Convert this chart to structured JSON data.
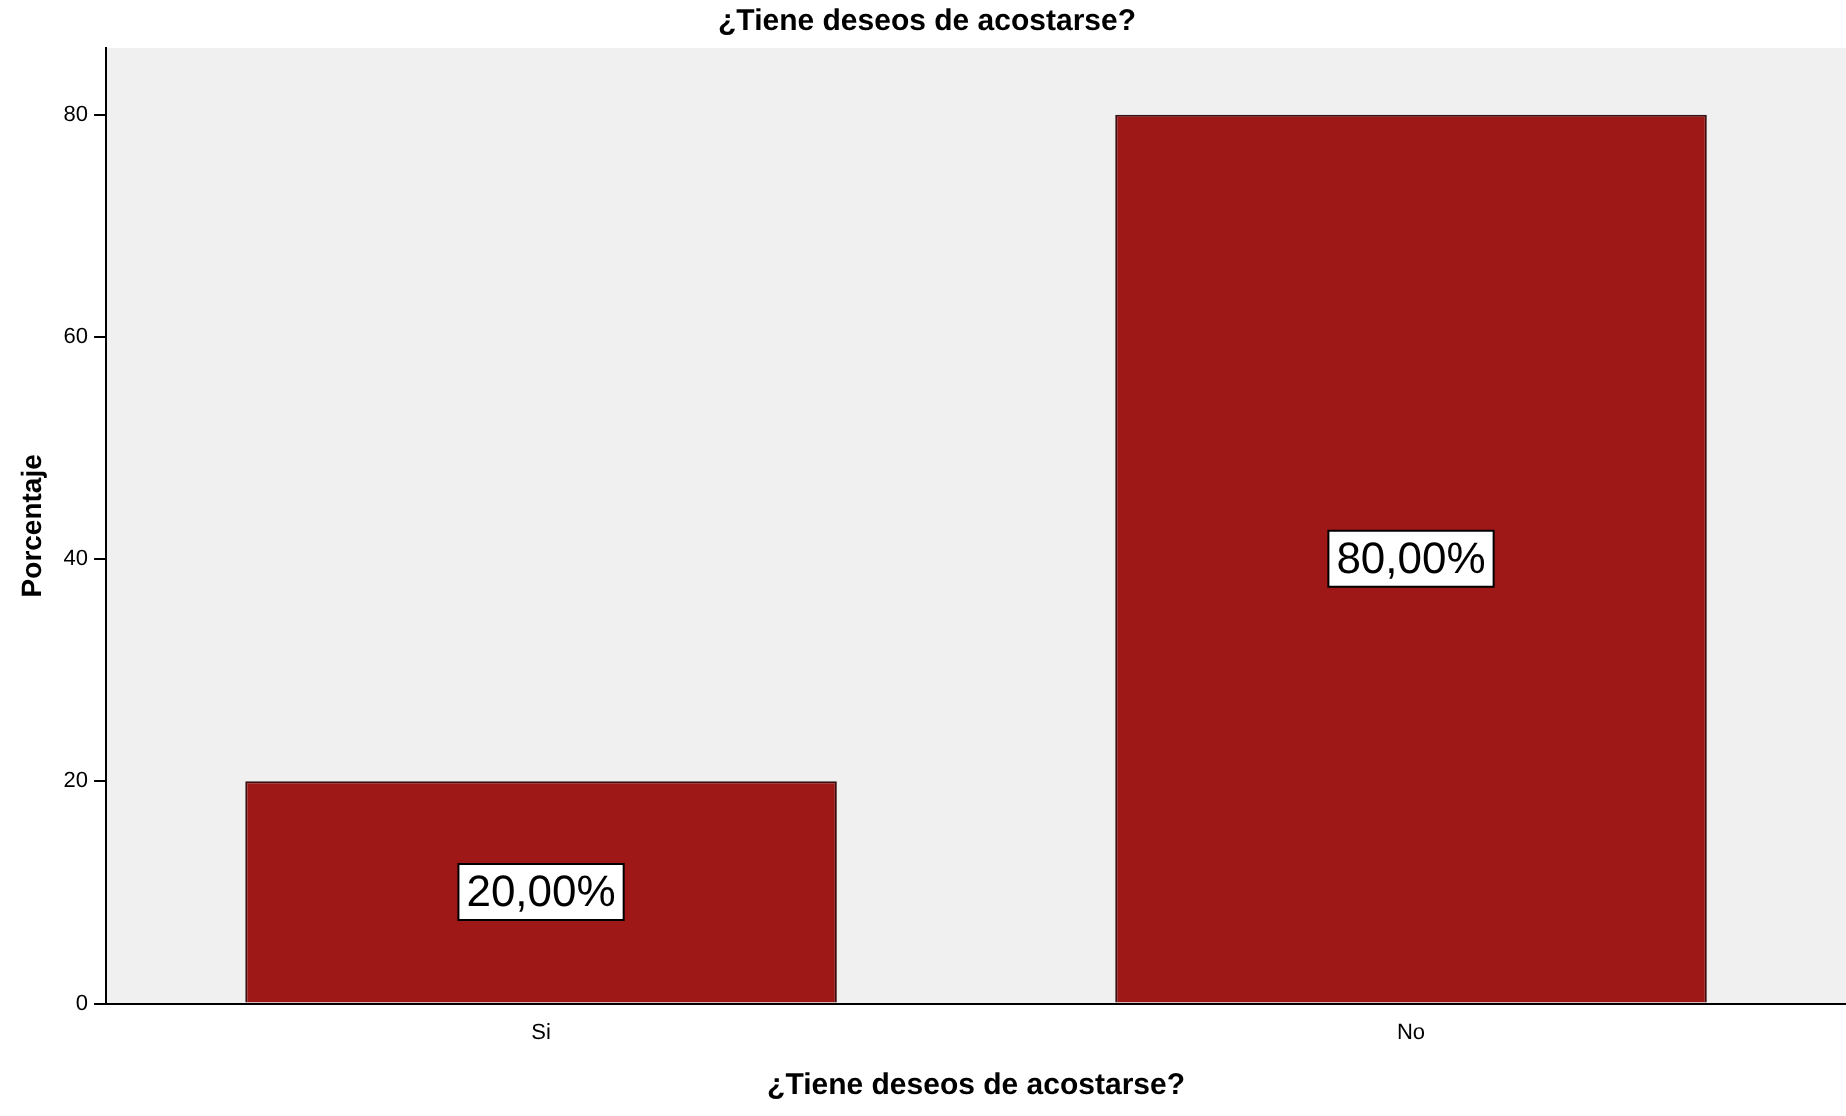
{
  "chart_data": {
    "type": "bar",
    "title": "¿Tiene deseos de acostarse?",
    "xlabel": "¿Tiene deseos de acostarse?",
    "ylabel": "Porcentaje",
    "categories": [
      "Si",
      "No"
    ],
    "series": [
      {
        "color": "#9e1818",
        "values": [
          20,
          80
        ],
        "value_labels": [
          "20,00%",
          "80,00%"
        ]
      }
    ],
    "ylim": [
      0,
      86
    ],
    "yticks": [
      0,
      20,
      40,
      60,
      80
    ],
    "grid": false,
    "legend": false
  }
}
